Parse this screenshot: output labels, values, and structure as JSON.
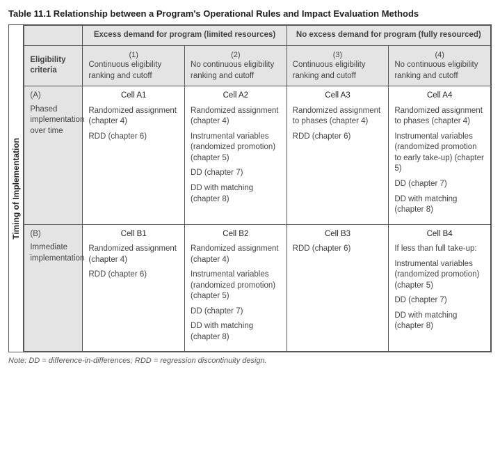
{
  "title": "Table 11.1    Relationship between a Program's Operational Rules and Impact Evaluation Methods",
  "vlabel": "Timing of Implementation",
  "header_excess": "Excess demand for program (limited resources)",
  "header_noexcess": "No excess demand for program (fully resourced)",
  "elig_label": "Eligibility criteria",
  "colnums": {
    "c1": "(1)",
    "c2": "(2)",
    "c3": "(3)",
    "c4": "(4)"
  },
  "coldesc": {
    "c1": "Continuous eligibility ranking and cutoff",
    "c2": "No continuous eligibility ranking and cutoff",
    "c3": "Continuous eligibility ranking and cutoff",
    "c4": "No continuous eligibility ranking and cutoff"
  },
  "rowA": {
    "code": "(A)",
    "label": "Phased implementation over time"
  },
  "rowB": {
    "code": "(B)",
    "label": "Immediate implementation"
  },
  "cells": {
    "A1": {
      "name": "Cell A1",
      "i1": "Randomized assignment (chapter 4)",
      "i2": "RDD (chapter 6)"
    },
    "A2": {
      "name": "Cell A2",
      "i1": "Randomized assignment (chapter 4)",
      "i2": "Instrumental variables (randomized promotion) (chapter 5)",
      "i3": "DD (chapter 7)",
      "i4": "DD with matching (chapter 8)"
    },
    "A3": {
      "name": "Cell A3",
      "i1": "Randomized assignment to phases (chapter 4)",
      "i2": "RDD (chapter 6)"
    },
    "A4": {
      "name": "Cell A4",
      "i1": "Randomized assignment to phases (chapter 4)",
      "i2": "Instrumental variables (randomized promotion to early take-up) (chapter 5)",
      "i3": "DD (chapter 7)",
      "i4": "DD with matching (chapter 8)"
    },
    "B1": {
      "name": "Cell B1",
      "i1": "Randomized assignment (chapter 4)",
      "i2": "RDD (chapter 6)"
    },
    "B2": {
      "name": "Cell B2",
      "i1": "Randomized assignment (chapter 4)",
      "i2": "Instrumental variables (randomized promotion) (chapter 5)",
      "i3": "DD (chapter 7)",
      "i4": "DD with matching (chapter 8)"
    },
    "B3": {
      "name": "Cell B3",
      "i1": "RDD (chapter 6)"
    },
    "B4": {
      "name": "Cell B4",
      "i1": "If less than full take-up:",
      "i2": "Instrumental variables (randomized promotion) (chapter 5)",
      "i3": "DD (chapter 7)",
      "i4": "DD with matching (chapter 8)"
    }
  },
  "note": "Note: DD = difference-in-differences; RDD = regression discontinuity design."
}
